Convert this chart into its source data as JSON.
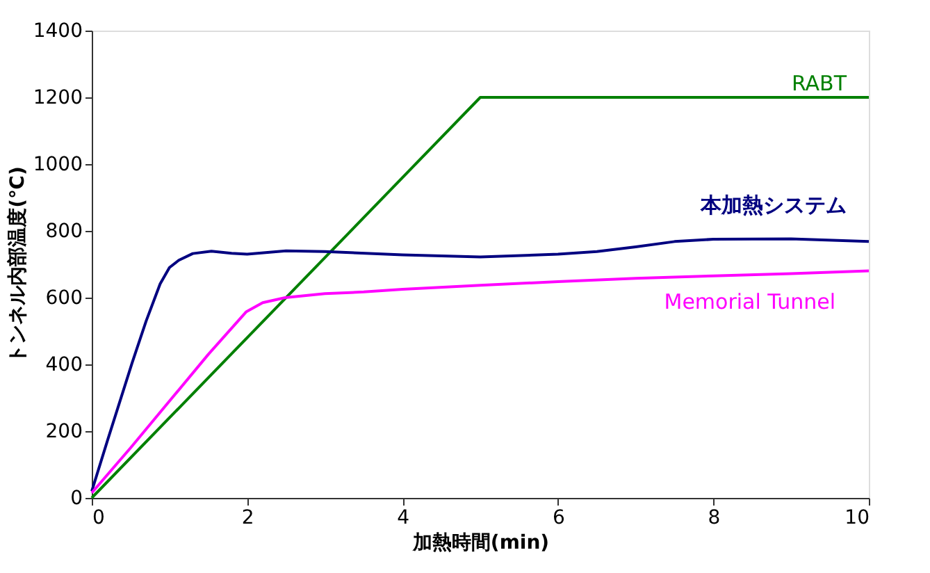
{
  "chart_data": {
    "type": "line",
    "xlabel": "加熱時間(min)",
    "ylabel": "トンネル内部温度(℃)",
    "xlim": [
      0,
      10
    ],
    "xticks": [
      0,
      2,
      4,
      6,
      8,
      10
    ],
    "ylim": [
      0,
      1400
    ],
    "yticks": [
      0,
      200,
      400,
      600,
      800,
      1000,
      1200,
      1400
    ],
    "grid": false,
    "legend": false,
    "marker": "none",
    "line_style": "solid",
    "series": [
      {
        "name": "RABT",
        "color": "#008000",
        "x": [
          0,
          5,
          10
        ],
        "values": [
          0,
          1200,
          1200
        ]
      },
      {
        "name": "本加熱システム",
        "color": "#000080",
        "x": [
          0,
          0.2,
          0.52,
          0.7,
          0.88,
          1.0,
          1.12,
          1.3,
          1.54,
          1.8,
          2.0,
          2.5,
          3.0,
          4.0,
          5.0,
          6.0,
          6.5,
          7.0,
          7.5,
          8.0,
          9.0,
          10.0
        ],
        "values": [
          20,
          170,
          405,
          530,
          641,
          690,
          712,
          732,
          739,
          733,
          730,
          740,
          738,
          728,
          722,
          730,
          738,
          752,
          768,
          775,
          776,
          768
        ]
      },
      {
        "name": "Memorial Tunnel",
        "color": "#ff00ff",
        "x": [
          0,
          0.5,
          1.0,
          1.5,
          1.99,
          2.2,
          2.49,
          3.0,
          3.5,
          4.0,
          5.0,
          6.0,
          7.0,
          8.0,
          9.0,
          10.0
        ],
        "values": [
          15,
          150,
          290,
          430,
          558,
          585,
          600,
          612,
          617,
          625,
          637,
          648,
          658,
          665,
          672,
          680
        ]
      }
    ]
  }
}
